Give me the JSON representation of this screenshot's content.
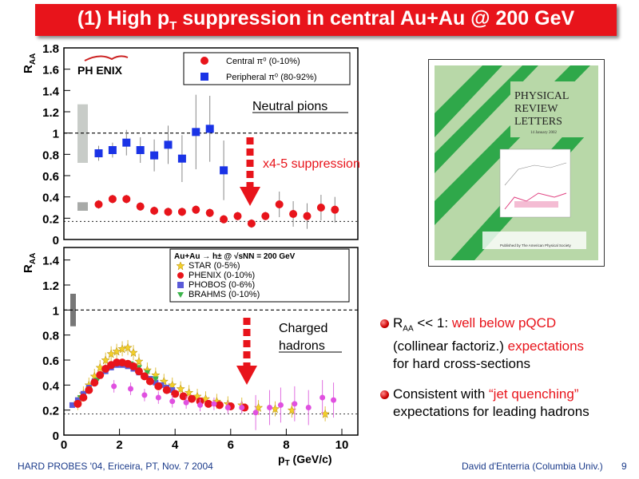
{
  "title": {
    "main": "(1) High p",
    "sub": "T",
    "rest": " suppression in central Au+Au @ 200 GeV"
  },
  "colors": {
    "accent": "#e8141b",
    "blue_series": "#1a33e6",
    "star_series": "#f2cf2a",
    "phobos": "#5a5ad8",
    "brahms": "#3cb44b",
    "journal_green": "#b8d8a8"
  },
  "top_panel": {
    "ylabel": "R",
    "ylabel_sub": "AA",
    "logo": "PH  ENIX",
    "yticks": [
      "0",
      "0.2",
      "0.4",
      "0.6",
      "0.8",
      "1",
      "1.2",
      "1.4",
      "1.6",
      "1.8"
    ],
    "legend": [
      {
        "label": "Central π⁰ (0-10%)",
        "marker": "circle",
        "color": "#e8141b"
      },
      {
        "label": "Peripheral π⁰ (80-92%)",
        "marker": "square",
        "color": "#1a33e6"
      }
    ],
    "annotation": "Neutral pions",
    "suppression": "x4-5 suppression"
  },
  "bottom_panel": {
    "ylabel": "R",
    "ylabel_sub": "AA",
    "yticks": [
      "0",
      "0.2",
      "0.4",
      "0.6",
      "0.8",
      "1",
      "1.2",
      "1.4"
    ],
    "xticks": [
      "0",
      "2",
      "4",
      "6",
      "8",
      "10"
    ],
    "xlabel": "p",
    "xlabel_sub": "T",
    "xlabel_rest": " (GeV/c)",
    "legend_title": "Au+Au → h± @ √sNN = 200 GeV",
    "legend": [
      {
        "label": "STAR (0-5%)",
        "marker": "star",
        "color": "#f2cf2a"
      },
      {
        "label": "PHENIX (0-10%)",
        "marker": "circle",
        "color": "#e8141b"
      },
      {
        "label": "PHOBOS (0-6%)",
        "marker": "square",
        "color": "#5a5ad8"
      },
      {
        "label": "BRAHMS (0-10%)",
        "marker": "triangle",
        "color": "#3cb44b"
      }
    ],
    "annotation_line1": "Charged",
    "annotation_line2": "hadrons"
  },
  "chart_data": [
    {
      "type": "scatter",
      "ylabel": "RAA",
      "ylim": [
        0,
        1.8
      ],
      "reference_line": 1.0,
      "series": [
        {
          "name": "Central π⁰ (0-10%)",
          "x": [
            1.25,
            1.75,
            2.25,
            2.75,
            3.25,
            3.75,
            4.25,
            4.75,
            5.25,
            5.75,
            6.25,
            6.75,
            7.25,
            7.75,
            8.25,
            8.75,
            9.25,
            9.75
          ],
          "y": [
            0.33,
            0.38,
            0.38,
            0.31,
            0.27,
            0.26,
            0.26,
            0.28,
            0.25,
            0.19,
            0.22,
            0.15,
            0.22,
            0.33,
            0.24,
            0.22,
            0.3,
            0.28
          ]
        },
        {
          "name": "Peripheral π⁰ (80-92%)",
          "x": [
            1.25,
            1.75,
            2.25,
            2.75,
            3.25,
            3.75,
            4.25,
            4.75,
            5.25,
            5.75
          ],
          "y": [
            0.81,
            0.84,
            0.91,
            0.84,
            0.79,
            0.89,
            0.76,
            1.01,
            1.04,
            0.65
          ]
        }
      ]
    },
    {
      "type": "scatter",
      "xlabel": "pT (GeV/c)",
      "ylabel": "RAA",
      "xlim": [
        0,
        10.5
      ],
      "ylim": [
        0,
        1.5
      ],
      "reference_line": 1.0,
      "series": [
        {
          "name": "STAR (0-5%)",
          "x": [
            0.5,
            0.7,
            0.9,
            1.1,
            1.3,
            1.5,
            1.7,
            1.9,
            2.1,
            2.3,
            2.5,
            2.7,
            3.0,
            3.3,
            3.6,
            3.9,
            4.2,
            4.5,
            4.8,
            5.1,
            5.5,
            5.9,
            6.4,
            7.0,
            7.6,
            8.2,
            9.4
          ],
          "y": [
            0.26,
            0.33,
            0.4,
            0.47,
            0.54,
            0.6,
            0.65,
            0.67,
            0.69,
            0.7,
            0.66,
            0.59,
            0.52,
            0.48,
            0.43,
            0.4,
            0.37,
            0.34,
            0.31,
            0.29,
            0.27,
            0.25,
            0.24,
            0.22,
            0.21,
            0.2,
            0.17
          ]
        },
        {
          "name": "PHENIX (0-10%)",
          "x": [
            0.5,
            0.7,
            0.9,
            1.1,
            1.3,
            1.5,
            1.7,
            1.9,
            2.1,
            2.3,
            2.5,
            2.7,
            2.9,
            3.1,
            3.4,
            3.7,
            4.0,
            4.3,
            4.6,
            4.9,
            5.2,
            5.6,
            6.0,
            6.5
          ],
          "y": [
            0.25,
            0.3,
            0.36,
            0.42,
            0.48,
            0.53,
            0.56,
            0.58,
            0.58,
            0.57,
            0.55,
            0.51,
            0.47,
            0.43,
            0.39,
            0.36,
            0.33,
            0.31,
            0.29,
            0.27,
            0.25,
            0.24,
            0.23,
            0.22
          ]
        },
        {
          "name": "PHOBOS (0-6%)",
          "x": [
            0.3,
            0.5,
            0.7,
            0.9,
            1.1,
            1.3,
            1.5,
            1.7,
            1.9,
            2.1,
            2.3,
            2.5,
            2.7,
            2.9,
            3.1,
            3.3,
            3.5,
            3.7,
            3.9
          ],
          "y": [
            0.24,
            0.28,
            0.33,
            0.38,
            0.43,
            0.48,
            0.51,
            0.54,
            0.56,
            0.56,
            0.55,
            0.53,
            0.5,
            0.47,
            0.45,
            0.42,
            0.4,
            0.38,
            0.36
          ]
        },
        {
          "name": "BRAHMS (0-10%)",
          "x": [
            0.6,
            0.9,
            1.2,
            1.5,
            1.8,
            2.1,
            2.4,
            2.7,
            3.0,
            3.3
          ],
          "y": [
            0.3,
            0.37,
            0.44,
            0.52,
            0.56,
            0.58,
            0.57,
            0.54,
            0.5,
            0.45
          ]
        },
        {
          "name": "high-pT",
          "x": [
            1.8,
            2.4,
            2.9,
            3.4,
            3.9,
            4.4,
            4.9,
            5.4,
            5.9,
            6.4,
            6.9,
            7.4,
            7.8,
            8.3,
            8.8,
            9.3,
            9.7
          ],
          "y": [
            0.39,
            0.37,
            0.32,
            0.3,
            0.27,
            0.26,
            0.24,
            0.25,
            0.22,
            0.22,
            0.18,
            0.22,
            0.24,
            0.25,
            0.22,
            0.3,
            0.28
          ]
        }
      ]
    }
  ],
  "journal": {
    "line1": "PHYSICAL",
    "line2": "REVIEW",
    "line3": "LETTERS",
    "date": "14 January 2002",
    "pub": "Published by The American Physical Society"
  },
  "bullets": [
    {
      "pre": "R",
      "pre_sub": "AA",
      "mid": " << 1: ",
      "red": "well below pQCD",
      "line2a": "(collinear factoriz.) ",
      "line2red": "expectations",
      "line3": "for hard cross-sections"
    },
    {
      "pre": "Consistent with ",
      "red": "“jet quenching”",
      "line2": "expectations for leading hadrons"
    }
  ],
  "footer": {
    "left": "HARD PROBES '04, Ericeira, PT, Nov. 7 2004",
    "right": "David d'Enterria (Columbia Univ.)",
    "page": "9"
  }
}
